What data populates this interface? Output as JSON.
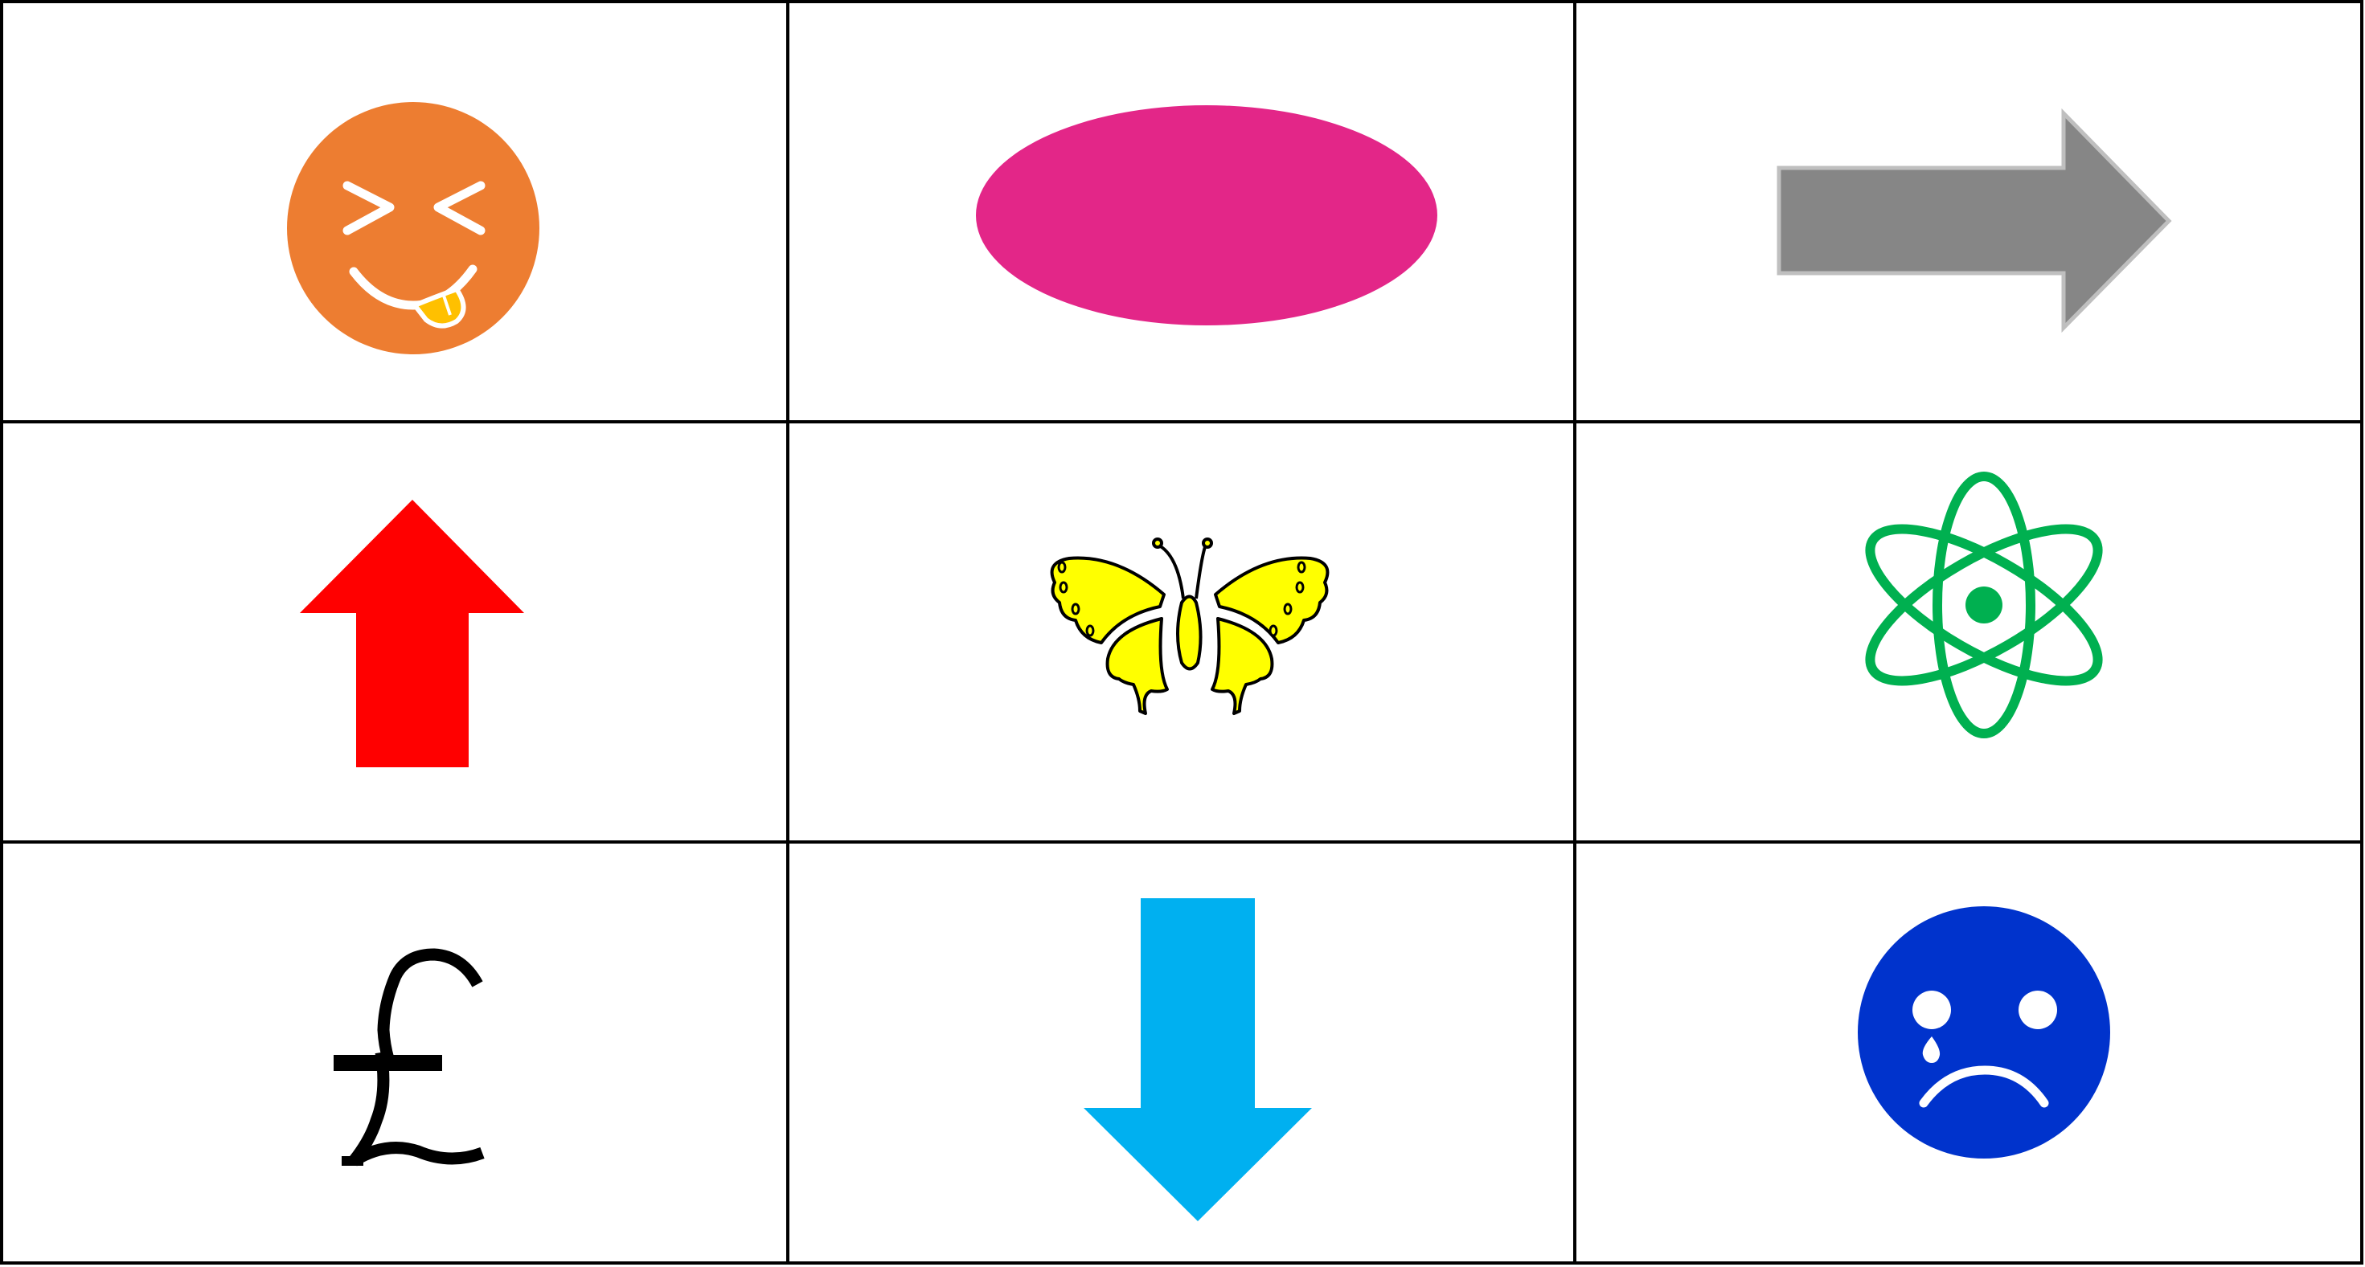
{
  "grid": {
    "rows": 3,
    "columns": 3,
    "border_color": "#000000",
    "background_color": "#ffffff"
  },
  "cells": [
    {
      "icon": "squinting-face-with-tongue-icon",
      "color": "#ED7D31",
      "accent": "#FFC000"
    },
    {
      "icon": "ellipse-icon",
      "color": "#E32688"
    },
    {
      "icon": "right-arrow-icon",
      "color": "#868686",
      "outline": "#BFBFBF"
    },
    {
      "icon": "up-arrow-icon",
      "color": "#FF0000"
    },
    {
      "icon": "butterfly-icon",
      "color": "#FFFF00",
      "outline": "#000000"
    },
    {
      "icon": "atom-icon",
      "color": "#00B050"
    },
    {
      "icon": "pound-sign-icon",
      "color": "#000000"
    },
    {
      "icon": "down-arrow-icon",
      "color": "#00B0F0"
    },
    {
      "icon": "crying-face-icon",
      "color": "#0033CC"
    }
  ]
}
